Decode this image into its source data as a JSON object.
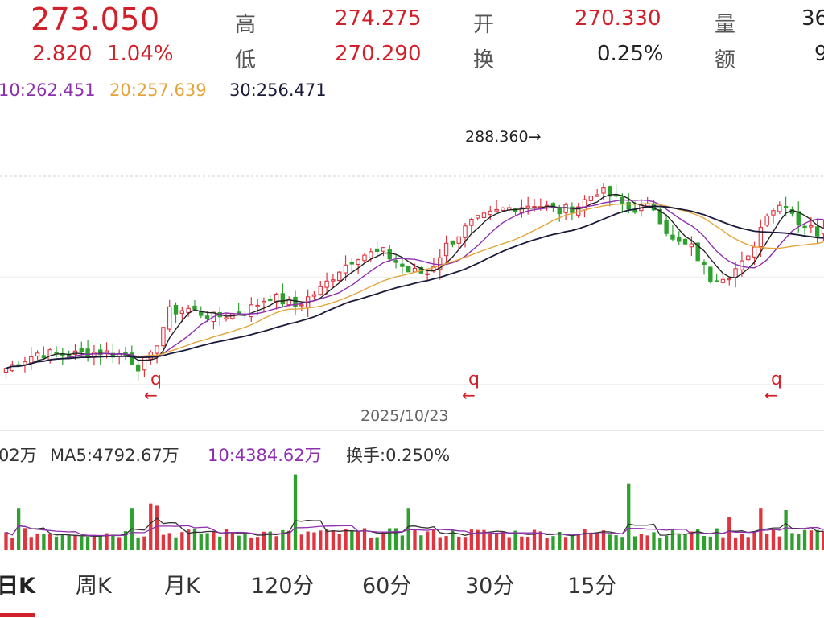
{
  "quote": {
    "price": "273.050",
    "change": "2.820",
    "change_pct": "1.04%",
    "stats": [
      {
        "label": "高",
        "value": "274.275",
        "color": "#d0212a"
      },
      {
        "label": "开",
        "value": "270.330",
        "color": "#d0212a"
      },
      {
        "label": "量",
        "value": "36",
        "color": "#222222"
      },
      {
        "label": "低",
        "value": "270.290",
        "color": "#d0212a"
      },
      {
        "label": "换",
        "value": "0.25%",
        "color": "#222222"
      },
      {
        "label": "额",
        "value": "9",
        "color": "#222222"
      }
    ]
  },
  "ma_legend": {
    "ma10": "10:262.451",
    "ma20": "20:257.639",
    "ma30": "30:256.471"
  },
  "high_marker": "288.360→",
  "dividend_marker": "q",
  "dividend_arrow": "←",
  "date_label": "2025/10/23",
  "volume_legend": {
    "vol": "02万",
    "ma5": "MA5:4792.67万",
    "ma10": "10:4384.62万",
    "turnover": "换手:0.250%"
  },
  "tabs": [
    "日K",
    "周K",
    "月K",
    "120分",
    "60分",
    "30分",
    "15分"
  ],
  "active_tab": "日K",
  "colors": {
    "up": "#e0343e",
    "down": "#2ea02e",
    "ma5": "#222222",
    "ma10": "#8e2fb0",
    "ma20": "#e3a53a",
    "ma30": "#1a1a3a"
  },
  "chart_data": {
    "type": "candlestick",
    "price_anchors": [
      {
        "i": 0,
        "p": 251.5
      },
      {
        "i": 5,
        "p": 253.8
      },
      {
        "i": 10,
        "p": 253.6
      },
      {
        "i": 15,
        "p": 254.0
      },
      {
        "i": 19,
        "p": 253.5
      },
      {
        "i": 21,
        "p": 251.8
      },
      {
        "i": 23,
        "p": 253.2
      },
      {
        "i": 26,
        "p": 260.2
      },
      {
        "i": 29,
        "p": 260.6
      },
      {
        "i": 33,
        "p": 259.3
      },
      {
        "i": 38,
        "p": 260.2
      },
      {
        "i": 42,
        "p": 262.6
      },
      {
        "i": 46,
        "p": 261.0
      },
      {
        "i": 50,
        "p": 263.6
      },
      {
        "i": 53,
        "p": 266.7
      },
      {
        "i": 56,
        "p": 268.9
      },
      {
        "i": 60,
        "p": 269.3
      },
      {
        "i": 64,
        "p": 266.4
      },
      {
        "i": 67,
        "p": 266.1
      },
      {
        "i": 70,
        "p": 270.3
      },
      {
        "i": 74,
        "p": 273.8
      },
      {
        "i": 79,
        "p": 275.9
      },
      {
        "i": 84,
        "p": 276.8
      },
      {
        "i": 88,
        "p": 275.6
      },
      {
        "i": 91,
        "p": 276.5
      },
      {
        "i": 94,
        "p": 278.8
      },
      {
        "i": 96,
        "p": 278.0
      },
      {
        "i": 99,
        "p": 276.0
      },
      {
        "i": 103,
        "p": 276.2
      },
      {
        "i": 106,
        "p": 271.0
      },
      {
        "i": 109,
        "p": 270.0
      },
      {
        "i": 112,
        "p": 265.4
      },
      {
        "i": 115,
        "p": 266.0
      },
      {
        "i": 118,
        "p": 268.2
      },
      {
        "i": 121,
        "p": 275.6
      },
      {
        "i": 124,
        "p": 277.0
      },
      {
        "i": 126,
        "p": 274.0
      },
      {
        "i": 129,
        "p": 272.4
      },
      {
        "i": 130,
        "p": 273.05
      }
    ],
    "volume_spikes": [
      {
        "i": 2,
        "v": 1.9
      },
      {
        "i": 20,
        "v": 1.9
      },
      {
        "i": 23,
        "v": 2.1
      },
      {
        "i": 24,
        "v": 2.0
      },
      {
        "i": 46,
        "v": 3.4
      },
      {
        "i": 64,
        "v": 1.9
      },
      {
        "i": 99,
        "v": 3.0
      },
      {
        "i": 115,
        "v": 1.5
      },
      {
        "i": 120,
        "v": 1.9
      },
      {
        "i": 124,
        "v": 1.8
      }
    ],
    "candle_count": 131
  }
}
